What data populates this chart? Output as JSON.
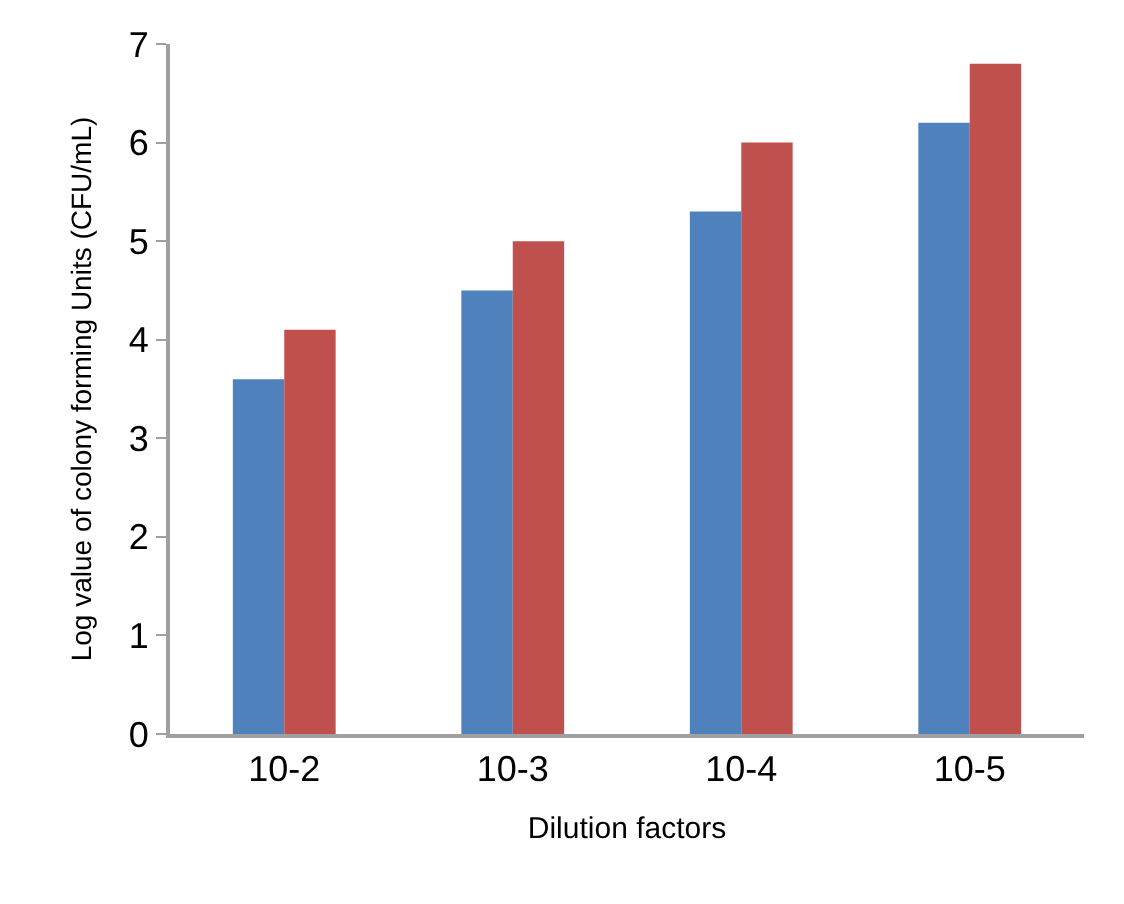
{
  "chart_data": {
    "type": "bar",
    "xlabel": "Dilution factors",
    "ylabel": "Log value of colony forming Units (CFU/mL)",
    "categories": [
      "10-2",
      "10-3",
      "10-4",
      "10-5"
    ],
    "series": [
      {
        "color": "#4f81bd",
        "values": [
          3.6,
          4.5,
          5.3,
          6.2
        ]
      },
      {
        "color": "#c0504d",
        "values": [
          4.1,
          5.0,
          6.0,
          6.8
        ]
      }
    ],
    "ylim": [
      0,
      7
    ],
    "yticks": [
      0,
      1,
      2,
      3,
      4,
      5,
      6,
      7
    ]
  }
}
